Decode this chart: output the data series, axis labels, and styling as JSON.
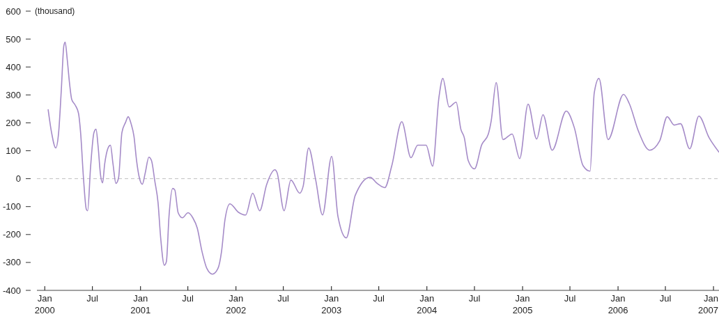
{
  "chart_data": {
    "type": "line",
    "ylabel": "(thousand)",
    "x": [
      "2000-01-14",
      "2000-01-27",
      "2000-02-12",
      "2000-02-23",
      "2000-03-04",
      "2000-03-14",
      "2000-03-19",
      "2000-03-27",
      "2000-04-05",
      "2000-04-13",
      "2000-04-26",
      "2000-05-09",
      "2000-05-17",
      "2000-05-28",
      "2000-06-08",
      "2000-06-13",
      "2000-06-24",
      "2000-07-07",
      "2000-07-15",
      "2000-07-23",
      "2000-08-01",
      "2000-08-09",
      "2000-08-17",
      "2000-08-30",
      "2000-09-08",
      "2000-09-18",
      "2000-09-29",
      "2000-10-09",
      "2000-10-22",
      "2000-11-05",
      "2000-11-15",
      "2000-11-26",
      "2000-12-07",
      "2000-12-17",
      "2000-12-28",
      "2001-01-08",
      "2001-01-19",
      "2001-02-02",
      "2001-02-12",
      "2001-02-25",
      "2001-03-09",
      "2001-03-19",
      "2001-04-02",
      "2001-04-10",
      "2001-04-20",
      "2001-05-04",
      "2001-05-12",
      "2001-05-25",
      "2001-06-10",
      "2001-07-02",
      "2001-07-20",
      "2001-08-06",
      "2001-08-24",
      "2001-09-12",
      "2001-10-03",
      "2001-10-24",
      "2001-11-07",
      "2001-11-20",
      "2001-12-09",
      "2002-01-10",
      "2002-02-07",
      "2002-03-06",
      "2002-04-02",
      "2002-04-28",
      "2002-05-30",
      "2002-06-07",
      "2002-07-04",
      "2002-07-30",
      "2002-09-02",
      "2002-09-15",
      "2002-10-06",
      "2002-11-02",
      "2002-11-28",
      "2003-01-02",
      "2003-01-26",
      "2003-02-27",
      "2003-04-02",
      "2003-05-29",
      "2003-06-25",
      "2003-07-24",
      "2003-08-20",
      "2003-09-27",
      "2003-11-01",
      "2003-11-27",
      "2003-12-29",
      "2004-01-23",
      "2004-02-16",
      "2004-03-02",
      "2004-03-26",
      "2004-04-22",
      "2004-05-10",
      "2004-05-23",
      "2004-06-07",
      "2004-07-01",
      "2004-07-29",
      "2004-08-23",
      "2004-09-03",
      "2004-09-22",
      "2004-10-18",
      "2004-11-22",
      "2004-12-21",
      "2005-01-22",
      "2005-02-24",
      "2005-03-20",
      "2005-04-24",
      "2005-06-17",
      "2005-07-18",
      "2005-08-20",
      "2005-09-16",
      "2005-10-02",
      "2005-10-20",
      "2005-11-24",
      "2006-01-22",
      "2006-02-13",
      "2006-03-20",
      "2006-05-02",
      "2006-06-09",
      "2006-07-08",
      "2006-08-04",
      "2006-08-28",
      "2006-10-02",
      "2006-11-06",
      "2006-12-15",
      "2007-01-22"
    ],
    "series": [
      {
        "color": "#a58bc8",
        "values": [
          247,
          165,
          110,
          165,
          314,
          476,
          489,
          426,
          339,
          284,
          264,
          234,
          165,
          2,
          -110,
          -115,
          40,
          165,
          177,
          115,
          15,
          -15,
          52,
          110,
          120,
          52,
          -17,
          2,
          165,
          202,
          222,
          197,
          152,
          65,
          2,
          -20,
          20,
          77,
          65,
          -10,
          -85,
          -210,
          -310,
          -297,
          -135,
          -35,
          -40,
          -122,
          -140,
          -122,
          -140,
          -177,
          -260,
          -322,
          -342,
          -322,
          -260,
          -147,
          -90,
          -120,
          -130,
          -52,
          -115,
          -22,
          32,
          22,
          -115,
          -5,
          -52,
          -27,
          110,
          -5,
          -130,
          80,
          -135,
          -212,
          -60,
          5,
          -17,
          -32,
          47,
          204,
          75,
          120,
          120,
          45,
          290,
          359,
          257,
          274,
          177,
          147,
          65,
          35,
          122,
          160,
          207,
          344,
          140,
          160,
          72,
          267,
          142,
          229,
          102,
          242,
          182,
          47,
          27,
          307,
          359,
          140,
          302,
          269,
          170,
          102,
          135,
          222,
          192,
          197,
          107,
          224,
          147,
          95
        ]
      }
    ],
    "xlim": [
      "1999-12-02",
      "2007-01-22"
    ],
    "xticks": [
      {
        "value": "2000-01-01",
        "label": "Jan\n2000"
      },
      {
        "value": "2000-07-01",
        "label": "Jul"
      },
      {
        "value": "2001-01-01",
        "label": "Jan\n2001"
      },
      {
        "value": "2001-07-01",
        "label": "Jul"
      },
      {
        "value": "2002-01-01",
        "label": "Jan\n2002"
      },
      {
        "value": "2002-07-01",
        "label": "Jul"
      },
      {
        "value": "2003-01-01",
        "label": "Jan\n2003"
      },
      {
        "value": "2003-07-01",
        "label": "Jul"
      },
      {
        "value": "2004-01-01",
        "label": "Jan\n2004"
      },
      {
        "value": "2004-07-01",
        "label": "Jul"
      },
      {
        "value": "2005-01-01",
        "label": "Jan\n2005"
      },
      {
        "value": "2005-07-01",
        "label": "Jul"
      },
      {
        "value": "2006-01-01",
        "label": "Jan\n2006"
      },
      {
        "value": "2006-07-01",
        "label": "Jul"
      },
      {
        "value": "2007-01-01",
        "label": "Jan\n2007"
      }
    ],
    "ylim": [
      -400,
      600
    ],
    "yticks": [
      -400,
      -300,
      -200,
      -100,
      0,
      100,
      200,
      300,
      400,
      500,
      600
    ],
    "ref_lines": [
      {
        "axis": "y",
        "value": 0,
        "color": "#c0c0c0",
        "line_style": "dashed"
      }
    ],
    "marker": "none",
    "line_style": "solid"
  }
}
